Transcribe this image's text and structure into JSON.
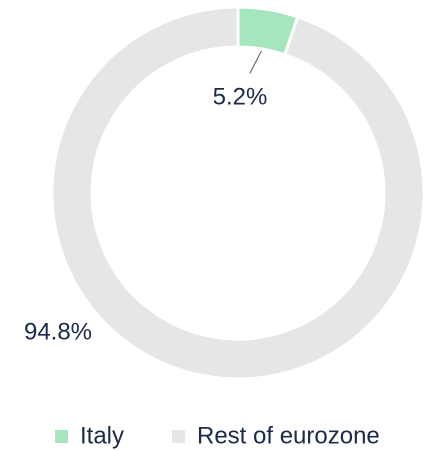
{
  "chart_data": {
    "type": "donut",
    "categories": [
      "Italy",
      "Rest of eurozone"
    ],
    "values": [
      5.2,
      94.8
    ],
    "value_labels": [
      "5.2%",
      "94.8%"
    ],
    "colors": [
      "#a6e6bf",
      "#e6e6e6"
    ],
    "legend": "bottom"
  }
}
